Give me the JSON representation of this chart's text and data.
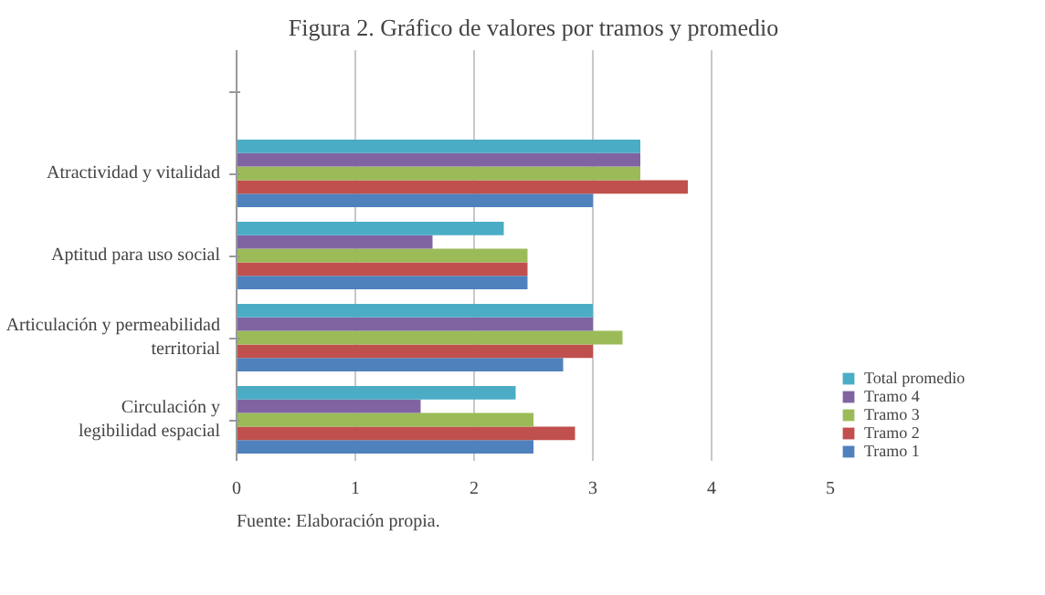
{
  "chart_data": {
    "type": "bar",
    "orientation": "horizontal",
    "title": "Figura 2. Gráfico de valores por tramos y promedio",
    "categories": [
      null,
      "Atractividad y vitalidad",
      "Aptitud para uso social",
      "Articulación y permeabilidad\nterritorial",
      "Circulación y\nlegibilidad espacial"
    ],
    "series": [
      {
        "name": "Tramo 1",
        "color": "#4f81bd",
        "values": [
          null,
          3.0,
          2.45,
          2.75,
          2.5
        ]
      },
      {
        "name": "Tramo 2",
        "color": "#c0504d",
        "values": [
          null,
          3.8,
          2.45,
          3.0,
          2.85
        ]
      },
      {
        "name": "Tramo 3",
        "color": "#9bbb59",
        "values": [
          null,
          3.4,
          2.45,
          3.25,
          2.5
        ]
      },
      {
        "name": "Tramo 4",
        "color": "#8064a2",
        "values": [
          null,
          3.4,
          1.65,
          3.0,
          1.55
        ]
      },
      {
        "name": "Total promedio",
        "color": "#4bacc6",
        "values": [
          null,
          3.4,
          2.25,
          3.0,
          2.35
        ]
      }
    ],
    "xlim": [
      0,
      5
    ],
    "xticks": [
      0,
      1,
      2,
      3,
      4,
      5
    ],
    "grid": "x",
    "legend": "right",
    "annotations": [
      "Fuente: Elaboración propia."
    ]
  }
}
